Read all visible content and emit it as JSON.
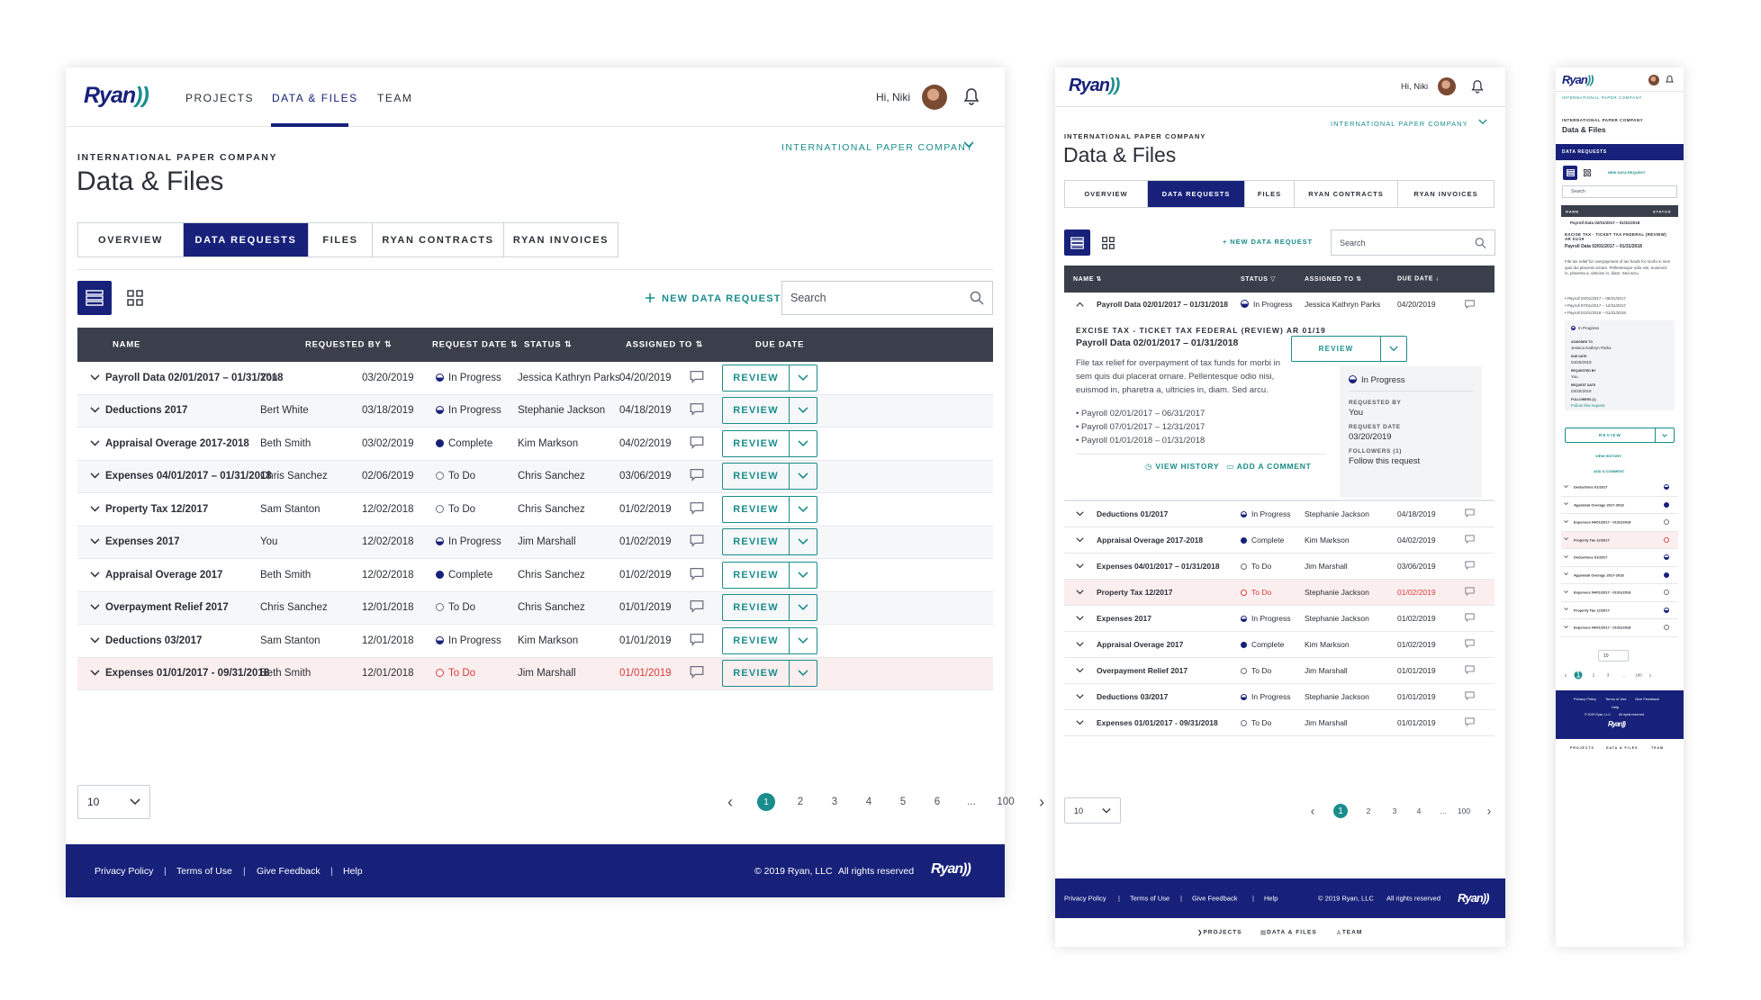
{
  "brand": {
    "logo": "Ryan",
    "navy": "#17217a",
    "teal": "#1a8d8c",
    "danger": "#d93a3a"
  },
  "nav": {
    "items": [
      "PROJECTS",
      "DATA & FILES",
      "TEAM"
    ],
    "active": "DATA & FILES",
    "greeting": "Hi, Niki"
  },
  "page": {
    "company": "INTERNATIONAL PAPER COMPANY",
    "title": "Data & Files",
    "company_select": "INTERNATIONAL PAPER COMPANY"
  },
  "tabs": [
    "OVERVIEW",
    "DATA REQUESTS",
    "FILES",
    "RYAN CONTRACTS",
    "RYAN INVOICES"
  ],
  "active_tab": "DATA REQUESTS",
  "toolbar": {
    "new_request": "NEW DATA REQUEST",
    "search_placeholder": "Search"
  },
  "table": {
    "headers": {
      "name": "NAME",
      "requested_by": "REQUESTED BY",
      "request_date": "REQUEST DATE",
      "status": "STATUS",
      "assigned_to": "ASSIGNED TO",
      "due_date": "DUE DATE"
    },
    "review_label": "REVIEW",
    "rows": [
      {
        "name": "Payroll Data 02/01/2017 – 01/31/2018",
        "requested_by": "You",
        "request_date": "03/20/2019",
        "status": "In Progress",
        "status_kind": "half",
        "assigned_to": "Jessica Kathryn Parks",
        "due_date": "04/20/2019",
        "overdue": false
      },
      {
        "name": "Deductions 2017",
        "requested_by": "Bert White",
        "request_date": "03/18/2019",
        "status": "In Progress",
        "status_kind": "half",
        "assigned_to": "Stephanie Jackson",
        "due_date": "04/18/2019",
        "overdue": false
      },
      {
        "name": "Appraisal Overage 2017-2018",
        "requested_by": "Beth Smith",
        "request_date": "03/02/2019",
        "status": "Complete",
        "status_kind": "full",
        "assigned_to": "Kim Markson",
        "due_date": "04/02/2019",
        "overdue": false
      },
      {
        "name": "Expenses 04/01/2017 – 01/31/2018",
        "requested_by": "Chris Sanchez",
        "request_date": "02/06/2019",
        "status": "To Do",
        "status_kind": "empty",
        "assigned_to": "Chris Sanchez",
        "due_date": "03/06/2019",
        "overdue": false
      },
      {
        "name": "Property Tax 12/2017",
        "requested_by": "Sam Stanton",
        "request_date": "12/02/2018",
        "status": "To Do",
        "status_kind": "empty",
        "assigned_to": "Chris Sanchez",
        "due_date": "01/02/2019",
        "overdue": false
      },
      {
        "name": "Expenses 2017",
        "requested_by": "You",
        "request_date": "12/02/2018",
        "status": "In Progress",
        "status_kind": "half",
        "assigned_to": "Jim Marshall",
        "due_date": "01/02/2019",
        "overdue": false
      },
      {
        "name": "Appraisal Overage 2017",
        "requested_by": "Beth Smith",
        "request_date": "12/02/2018",
        "status": "Complete",
        "status_kind": "full",
        "assigned_to": "Chris Sanchez",
        "due_date": "01/02/2019",
        "overdue": false
      },
      {
        "name": "Overpayment Relief 2017",
        "requested_by": "Chris Sanchez",
        "request_date": "12/01/2018",
        "status": "To Do",
        "status_kind": "empty",
        "assigned_to": "Chris Sanchez",
        "due_date": "01/01/2019",
        "overdue": false
      },
      {
        "name": "Deductions 03/2017",
        "requested_by": "Sam Stanton",
        "request_date": "12/01/2018",
        "status": "In Progress",
        "status_kind": "half",
        "assigned_to": "Kim Markson",
        "due_date": "01/01/2019",
        "overdue": false
      },
      {
        "name": "Expenses 01/01/2017 - 09/31/2018",
        "requested_by": "Beth Smith",
        "request_date": "12/01/2018",
        "status": "To Do",
        "status_kind": "red",
        "assigned_to": "Jim Marshall",
        "due_date": "01/01/2019",
        "overdue": true
      }
    ]
  },
  "pagination": {
    "per_page": "10",
    "pages": [
      "1",
      "2",
      "3",
      "4",
      "5",
      "6",
      "...",
      "100"
    ],
    "current": "1"
  },
  "footer": {
    "links": [
      "Privacy Policy",
      "Terms of Use",
      "Give Feedback",
      "Help"
    ],
    "copyright": "© 2019 Ryan, LLC",
    "rights": "All rights reserved"
  },
  "tablet": {
    "pages": [
      "1",
      "2",
      "3",
      "4",
      "...",
      "100"
    ],
    "detail": {
      "category": "EXCISE TAX - TICKET TAX FEDERAL (REVIEW) AR 01/19",
      "title": "Payroll Data 02/01/2017 – 01/31/2018",
      "description": "File tax relief for overpayment of tax funds for morbi in sem quis dui placerat ornare. Pellentesque odio nisi, euismod in, pharetra a, ultricies in, diam. Sed arcu.",
      "bullets": [
        "• Payroll 02/01/2017 – 06/31/2017",
        "• Payroll 07/01/2017 – 12/31/2017",
        "• Payroll 01/01/2018 – 01/31/2018"
      ],
      "status": "In Progress",
      "requested_by_label": "REQUESTED BY",
      "requested_by": "You",
      "request_date_label": "REQUEST DATE",
      "request_date": "03/20/2019",
      "followers_label": "FOLLOWERS (1)",
      "follow_link": "Follow this request",
      "view_history": "VIEW HISTORY",
      "add_comment": "ADD A COMMENT"
    },
    "rows": [
      {
        "name": "Deductions 01/2017",
        "status": "In Progress",
        "status_kind": "half",
        "assigned_to": "Stephanie Jackson",
        "due_date": "04/18/2019",
        "overdue": false
      },
      {
        "name": "Appraisal Overage 2017-2018",
        "status": "Complete",
        "status_kind": "full",
        "assigned_to": "Kim Markson",
        "due_date": "04/02/2019",
        "overdue": false
      },
      {
        "name": "Expenses 04/01/2017 – 01/31/2018",
        "status": "To Do",
        "status_kind": "empty",
        "assigned_to": "Jim Marshall",
        "due_date": "03/06/2019",
        "overdue": false
      },
      {
        "name": "Property Tax 12/2017",
        "status": "To Do",
        "status_kind": "red",
        "assigned_to": "Stephanie Jackson",
        "due_date": "01/02/2019",
        "overdue": true
      },
      {
        "name": "Expenses 2017",
        "status": "In Progress",
        "status_kind": "half",
        "assigned_to": "Stephanie Jackson",
        "due_date": "01/02/2019",
        "overdue": false
      },
      {
        "name": "Appraisal Overage 2017",
        "status": "Complete",
        "status_kind": "full",
        "assigned_to": "Kim Markson",
        "due_date": "01/02/2019",
        "overdue": false
      },
      {
        "name": "Overpayment Relief 2017",
        "status": "To Do",
        "status_kind": "empty",
        "assigned_to": "Jim Marshall",
        "due_date": "01/01/2019",
        "overdue": false
      },
      {
        "name": "Deductions 03/2017",
        "status": "In Progress",
        "status_kind": "half",
        "assigned_to": "Stephanie Jackson",
        "due_date": "01/01/2019",
        "overdue": false
      },
      {
        "name": "Expenses 01/01/2017 - 09/31/2018",
        "status": "To Do",
        "status_kind": "empty",
        "assigned_to": "Jim Marshall",
        "due_date": "01/01/2019",
        "overdue": false
      }
    ]
  },
  "mobile": {
    "header_name": "NAME",
    "header_status": "STATUS",
    "rows": [
      {
        "name": "Deductions 01/2017",
        "status_kind": "half",
        "overdue": false
      },
      {
        "name": "Appraisal Overage 2017-2018",
        "status_kind": "full",
        "overdue": false
      },
      {
        "name": "Expenses 04/01/2017 - 01/31/2018",
        "status_kind": "empty",
        "overdue": false
      },
      {
        "name": "Property Tax 12/2017",
        "status_kind": "red",
        "overdue": true
      },
      {
        "name": "Deductions 01/2017",
        "status_kind": "half",
        "overdue": false
      },
      {
        "name": "Appraisal Overage 2017-2018",
        "status_kind": "full",
        "overdue": false
      },
      {
        "name": "Expenses 04/01/2017 - 01/31/2018",
        "status_kind": "empty",
        "overdue": false
      },
      {
        "name": "Property Tax 12/2017",
        "status_kind": "half",
        "overdue": false
      },
      {
        "name": "Expenses 04/01/2017 - 01/31/2018",
        "status_kind": "empty",
        "overdue": false
      }
    ],
    "pages": [
      "1",
      "2",
      "3",
      "...",
      "100"
    ]
  }
}
